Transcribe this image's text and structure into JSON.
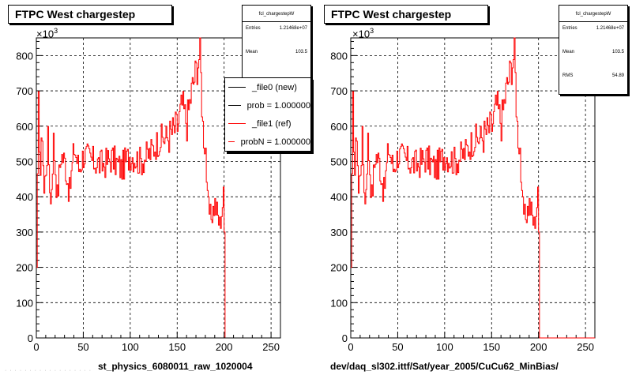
{
  "canvas": {
    "left": {
      "title": "FTPC West chargestep",
      "multiplier_base": "×10",
      "multiplier_exp": "3",
      "stats": {
        "name": "fcl_chargestepW",
        "rows": [
          {
            "label": "Entries",
            "value": "1.21468e+07"
          },
          {
            "label": "Mean",
            "value": "103.5"
          }
        ]
      },
      "legend": [
        {
          "label": "_file0 (new)",
          "color": "#000000"
        },
        {
          "label": "prob = 1.000000",
          "color": "#000000"
        },
        {
          "label": "_file1 (ref)",
          "color": "#ff0000"
        },
        {
          "label": "probN = 1.000000",
          "color": "#ff0000"
        }
      ],
      "file_label": "st_physics_6080011_raw_1020004"
    },
    "right": {
      "title": "FTPC West chargestep",
      "multiplier_base": "×10",
      "multiplier_exp": "3",
      "stats": {
        "name": "fcl_chargestepW",
        "rows": [
          {
            "label": "Entries",
            "value": "1.21468e+07"
          },
          {
            "label": "Mean",
            "value": "103.5"
          },
          {
            "label": "RMS",
            "value": "54.89"
          }
        ]
      },
      "file_label": "dev/daq_sl302.ittf/Sat/year_2005/CuCu62_MinBias/"
    }
  },
  "chart_data": [
    {
      "type": "line",
      "title": "FTPC West chargestep",
      "xlim": [
        0,
        260
      ],
      "ylim": [
        0,
        850
      ],
      "y_multiplier": "×10^3",
      "xticks": [
        0,
        50,
        100,
        150,
        200,
        250
      ],
      "yticks": [
        0,
        100,
        200,
        300,
        400,
        500,
        600,
        700,
        800
      ],
      "grid": true,
      "legend_position": "top-right",
      "series": [
        {
          "name": "_file1 (ref)",
          "color": "#ff0000",
          "anchors": [
            [
              0,
              200
            ],
            [
              2,
              660
            ],
            [
              4,
              470
            ],
            [
              6,
              590
            ],
            [
              8,
              410
            ],
            [
              12,
              560
            ],
            [
              15,
              380
            ],
            [
              18,
              560
            ],
            [
              22,
              400
            ],
            [
              26,
              520
            ],
            [
              30,
              500
            ],
            [
              35,
              410
            ],
            [
              40,
              540
            ],
            [
              45,
              480
            ],
            [
              50,
              520
            ],
            [
              60,
              500
            ],
            [
              70,
              490
            ],
            [
              80,
              510
            ],
            [
              90,
              480
            ],
            [
              100,
              520
            ],
            [
              110,
              500
            ],
            [
              120,
              520
            ],
            [
              130,
              560
            ],
            [
              140,
              570
            ],
            [
              150,
              600
            ],
            [
              155,
              660
            ],
            [
              160,
              610
            ],
            [
              165,
              700
            ],
            [
              170,
              760
            ],
            [
              174,
              810
            ],
            [
              177,
              600
            ],
            [
              180,
              540
            ],
            [
              182,
              380
            ],
            [
              185,
              340
            ],
            [
              190,
              380
            ],
            [
              195,
              320
            ],
            [
              199,
              400
            ],
            [
              200,
              300
            ],
            [
              201,
              0
            ],
            [
              260,
              0
            ]
          ]
        },
        {
          "name": "_file0 (new)",
          "color": "#000000",
          "anchors": [
            [
              0,
              0
            ],
            [
              260,
              0
            ]
          ]
        }
      ]
    },
    {
      "type": "line",
      "title": "FTPC West chargestep",
      "xlim": [
        0,
        260
      ],
      "ylim": [
        0,
        850
      ],
      "y_multiplier": "×10^3",
      "xticks": [
        0,
        50,
        100,
        150,
        200,
        250
      ],
      "yticks": [
        0,
        100,
        200,
        300,
        400,
        500,
        600,
        700,
        800
      ],
      "grid": true,
      "series": [
        {
          "color": "#ff0000",
          "anchors": [
            [
              0,
              200
            ],
            [
              2,
              660
            ],
            [
              4,
              470
            ],
            [
              6,
              590
            ],
            [
              8,
              410
            ],
            [
              12,
              560
            ],
            [
              15,
              380
            ],
            [
              18,
              560
            ],
            [
              22,
              400
            ],
            [
              26,
              520
            ],
            [
              30,
              500
            ],
            [
              35,
              410
            ],
            [
              40,
              540
            ],
            [
              45,
              480
            ],
            [
              50,
              520
            ],
            [
              60,
              500
            ],
            [
              70,
              490
            ],
            [
              80,
              510
            ],
            [
              90,
              480
            ],
            [
              100,
              520
            ],
            [
              110,
              500
            ],
            [
              120,
              520
            ],
            [
              130,
              560
            ],
            [
              140,
              570
            ],
            [
              150,
              600
            ],
            [
              155,
              660
            ],
            [
              160,
              610
            ],
            [
              165,
              700
            ],
            [
              170,
              760
            ],
            [
              174,
              810
            ],
            [
              177,
              600
            ],
            [
              180,
              540
            ],
            [
              182,
              380
            ],
            [
              185,
              340
            ],
            [
              190,
              380
            ],
            [
              195,
              320
            ],
            [
              199,
              400
            ],
            [
              200,
              300
            ],
            [
              201,
              0
            ],
            [
              260,
              0
            ]
          ]
        }
      ]
    }
  ]
}
